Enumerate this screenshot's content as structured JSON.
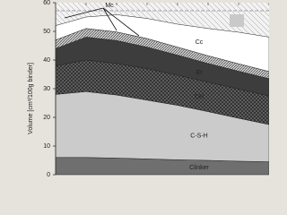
{
  "chart_data": {
    "type": "stacked-area",
    "y_label": "Volume [cm³/100g binder]",
    "categories": [
      null,
      null,
      null,
      null,
      null,
      null,
      null,
      null
    ],
    "ylim": [
      0,
      60
    ],
    "yticks": [
      0,
      10,
      20,
      30,
      40,
      50,
      60
    ],
    "series": [
      {
        "name": "Clinker",
        "color": "#6f6f6f",
        "values": [
          6,
          6,
          5.8,
          5.5,
          5.2,
          5,
          4.7,
          4.5
        ]
      },
      {
        "name": "C-S-H",
        "color": "#cbcbcb",
        "values": [
          22,
          23,
          22,
          20.5,
          19,
          17,
          15,
          13
        ]
      },
      {
        "name": "CH",
        "color": "#2e2e2e",
        "pattern": "cross",
        "values": [
          10,
          11,
          11,
          11,
          10.5,
          10.3,
          10.2,
          10
        ]
      },
      {
        "name": "Et",
        "color": "#3d3d3d",
        "values": [
          6,
          8,
          8,
          7.5,
          7,
          6.5,
          6.2,
          6
        ]
      },
      {
        "name": "Mc",
        "color": "#8a8a8a",
        "pattern": "hatch",
        "values": [
          3,
          3,
          3,
          3,
          2.8,
          2.7,
          2.6,
          2.5
        ]
      },
      {
        "name": "Cc",
        "color": "#ffffff",
        "values": [
          5,
          4,
          6,
          7,
          8,
          9.5,
          11,
          12
        ]
      }
    ]
  }
}
